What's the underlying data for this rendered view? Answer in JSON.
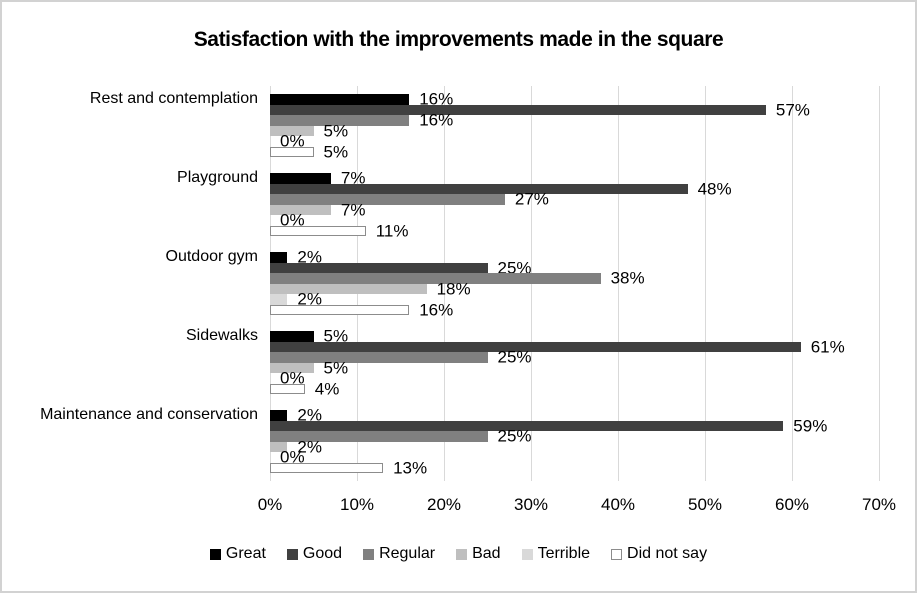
{
  "chart_data": {
    "type": "bar",
    "orientation": "horizontal",
    "title": "Satisfaction with the improvements made in the square",
    "categories": [
      "Rest and contemplation",
      "Playground",
      "Outdoor gym",
      "Sidewalks",
      "Maintenance and conservation"
    ],
    "series": [
      {
        "name": "Great",
        "color": "#000000",
        "values": [
          16,
          7,
          2,
          5,
          2
        ]
      },
      {
        "name": "Good",
        "color": "#404040",
        "values": [
          57,
          48,
          25,
          61,
          59
        ]
      },
      {
        "name": "Regular",
        "color": "#808080",
        "values": [
          16,
          27,
          38,
          25,
          25
        ]
      },
      {
        "name": "Bad",
        "color": "#bfbfbf",
        "values": [
          5,
          7,
          18,
          5,
          2
        ]
      },
      {
        "name": "Terrible",
        "color": "#d9d9d9",
        "values": [
          0,
          0,
          2,
          0,
          0
        ]
      },
      {
        "name": "Did not say",
        "color": "#ffffff",
        "border_color": "#8c8c8c",
        "values": [
          5,
          11,
          16,
          4,
          13
        ]
      }
    ],
    "value_suffix": "%",
    "data_labels": true,
    "x_ticks": [
      "0%",
      "10%",
      "20%",
      "30%",
      "40%",
      "50%",
      "60%",
      "70%"
    ],
    "xlim": [
      0,
      70
    ],
    "grid": true,
    "gridline_color": "#d9d9d9",
    "legend_position": "bottom"
  }
}
